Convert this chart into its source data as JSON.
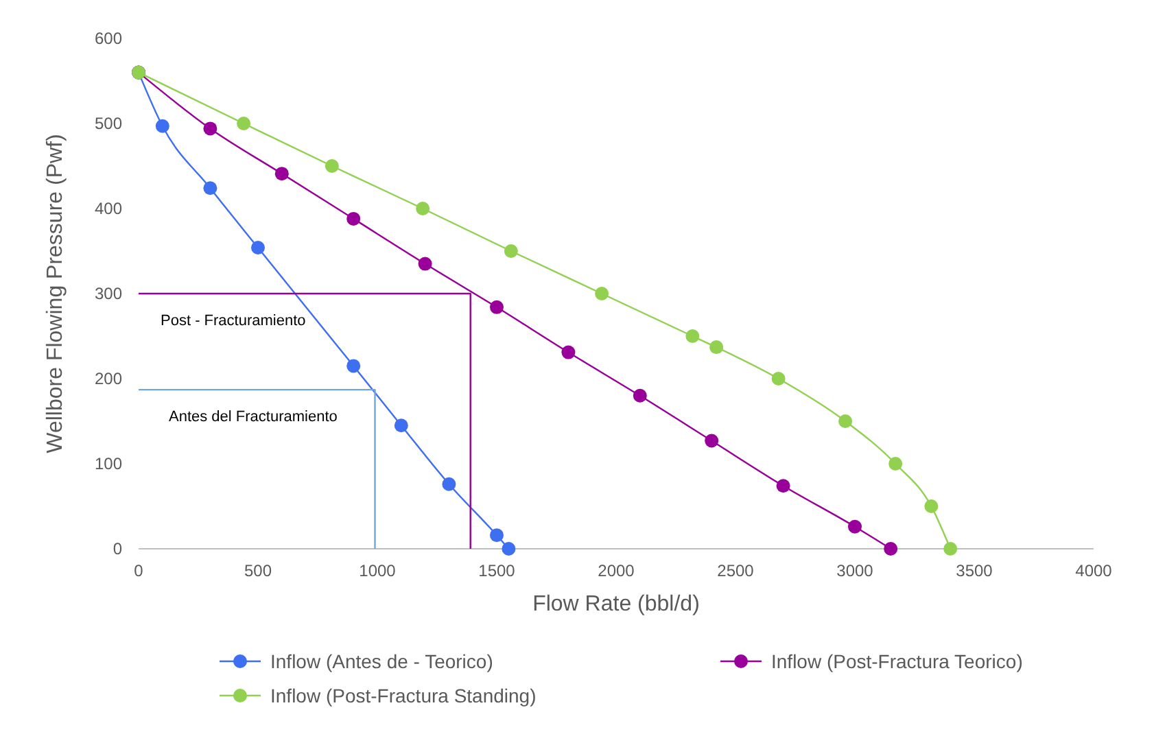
{
  "chart_data": {
    "type": "line",
    "xlabel": "Flow Rate (bbl/d)",
    "ylabel": "Wellbore Flowing Pressure (Pwf)",
    "xlim": [
      0,
      4000
    ],
    "xticks": [
      0,
      500,
      1000,
      1500,
      2000,
      2500,
      3000,
      3500,
      4000
    ],
    "ylim": [
      0,
      600
    ],
    "yticks": [
      0,
      100,
      200,
      300,
      400,
      500,
      600
    ],
    "grid": false,
    "legend": "bottom",
    "marker": "circle",
    "series": [
      {
        "name": "Inflow (Antes de - Teorico)",
        "color": "#3d6ff0",
        "x": [
          0,
          100,
          300,
          500,
          900,
          1100,
          1300,
          1500,
          1550
        ],
        "values": [
          560,
          497,
          424,
          354,
          215,
          145,
          76,
          16,
          0
        ]
      },
      {
        "name": "Inflow (Post-Fractura Teorico)",
        "color": "#990099",
        "x": [
          0,
          300,
          600,
          900,
          1200,
          1500,
          1800,
          2100,
          2400,
          2700,
          3000,
          3150
        ],
        "values": [
          560,
          494,
          441,
          388,
          335,
          284,
          231,
          180,
          127,
          74,
          26,
          0
        ]
      },
      {
        "name": "Inflow (Post-Fractura Standing)",
        "color": "#92d050",
        "x": [
          0,
          440,
          810,
          1190,
          1560,
          1940,
          2320,
          2420,
          2680,
          2960,
          3170,
          3320,
          3400
        ],
        "values": [
          560,
          500,
          450,
          400,
          350,
          300,
          250,
          237,
          200,
          150,
          100,
          50,
          0
        ]
      },
      {
        "color": "#990099",
        "marker": "none",
        "x": [
          0,
          1390,
          1390
        ],
        "values": [
          300,
          300,
          0
        ]
      },
      {
        "color": "#6fa8dc",
        "marker": "none",
        "x": [
          0,
          990,
          990
        ],
        "values": [
          187,
          187,
          0
        ]
      }
    ],
    "annotations": [
      "Post - Fracturamiento",
      "Antes del Fracturamiento"
    ]
  }
}
